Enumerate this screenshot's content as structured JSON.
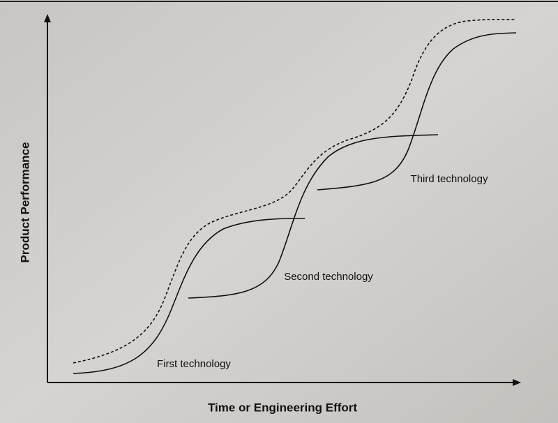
{
  "axes": {
    "y_label": "Product Performance",
    "x_label": "Time or Engineering Effort"
  },
  "curves": [
    {
      "label": "First technology"
    },
    {
      "label": "Second technology"
    },
    {
      "label": "Third technology"
    }
  ]
}
